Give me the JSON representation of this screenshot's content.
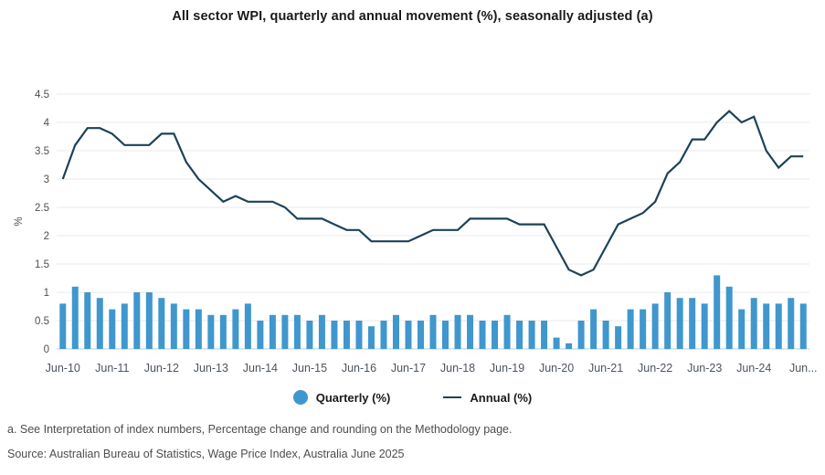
{
  "page": {
    "footnote": "a. See Interpretation of index numbers, Percentage change and rounding on the Methodology page.",
    "source": "Source: Australian Bureau of Statistics, Wage Price Index, Australia June 2025"
  },
  "legend": {
    "items": [
      {
        "label": "Quarterly (%)",
        "marker": "circle"
      },
      {
        "label": "Annual (%)",
        "marker": "line"
      }
    ]
  },
  "colors": {
    "bar": "#3f97cd",
    "line": "#1d4258",
    "grid": "#e9e9e9",
    "axis_baseline": "#c9dff0",
    "title_text": "#1a1a1a",
    "tick_text": "#4f4f4f",
    "xlabel_text": "#4b5560",
    "note_text": "#4d4d4d"
  },
  "chart_data": {
    "type": "combo-bar-line",
    "title": "All sector WPI, quarterly and annual movement (%), seasonally adjusted (a)",
    "xlabel": "",
    "ylabel": "%",
    "ylim": [
      0,
      4.5
    ],
    "ytick_step": 0.5,
    "grid": "horizontal",
    "legend_position": "bottom",
    "categories": [
      "Jun-10",
      "Sep-10",
      "Dec-10",
      "Mar-11",
      "Jun-11",
      "Sep-11",
      "Dec-11",
      "Mar-12",
      "Jun-12",
      "Sep-12",
      "Dec-12",
      "Mar-13",
      "Jun-13",
      "Sep-13",
      "Dec-13",
      "Mar-14",
      "Jun-14",
      "Sep-14",
      "Dec-14",
      "Mar-15",
      "Jun-15",
      "Sep-15",
      "Dec-15",
      "Mar-16",
      "Jun-16",
      "Sep-16",
      "Dec-16",
      "Mar-17",
      "Jun-17",
      "Sep-17",
      "Dec-17",
      "Mar-18",
      "Jun-18",
      "Sep-18",
      "Dec-18",
      "Mar-19",
      "Jun-19",
      "Sep-19",
      "Dec-19",
      "Mar-20",
      "Jun-20",
      "Sep-20",
      "Dec-20",
      "Mar-21",
      "Jun-21",
      "Sep-21",
      "Dec-21",
      "Mar-22",
      "Jun-22",
      "Sep-22",
      "Dec-22",
      "Mar-23",
      "Jun-23",
      "Sep-23",
      "Dec-23",
      "Mar-24",
      "Jun-24",
      "Sep-24",
      "Dec-24",
      "Mar-25",
      "Jun-25"
    ],
    "x_ticks": [
      {
        "index": 0,
        "label": "Jun-10"
      },
      {
        "index": 4,
        "label": "Jun-11"
      },
      {
        "index": 8,
        "label": "Jun-12"
      },
      {
        "index": 12,
        "label": "Jun-13"
      },
      {
        "index": 16,
        "label": "Jun-14"
      },
      {
        "index": 20,
        "label": "Jun-15"
      },
      {
        "index": 24,
        "label": "Jun-16"
      },
      {
        "index": 28,
        "label": "Jun-17"
      },
      {
        "index": 32,
        "label": "Jun-18"
      },
      {
        "index": 36,
        "label": "Jun-19"
      },
      {
        "index": 40,
        "label": "Jun-20"
      },
      {
        "index": 44,
        "label": "Jun-21"
      },
      {
        "index": 48,
        "label": "Jun-22"
      },
      {
        "index": 52,
        "label": "Jun-23"
      },
      {
        "index": 56,
        "label": "Jun-24"
      },
      {
        "index": 60,
        "label": "Jun..."
      }
    ],
    "series": [
      {
        "name": "Quarterly (%)",
        "kind": "bar",
        "values": [
          0.8,
          1.1,
          1.0,
          0.9,
          0.7,
          0.8,
          1.0,
          1.0,
          0.9,
          0.8,
          0.7,
          0.7,
          0.6,
          0.6,
          0.7,
          0.8,
          0.5,
          0.6,
          0.6,
          0.6,
          0.5,
          0.6,
          0.5,
          0.5,
          0.5,
          0.4,
          0.5,
          0.6,
          0.5,
          0.5,
          0.6,
          0.5,
          0.6,
          0.6,
          0.5,
          0.5,
          0.6,
          0.5,
          0.5,
          0.5,
          0.2,
          0.1,
          0.5,
          0.7,
          0.5,
          0.4,
          0.7,
          0.7,
          0.8,
          1.0,
          0.9,
          0.9,
          0.8,
          1.3,
          1.1,
          0.7,
          0.9,
          0.8,
          0.8,
          0.9,
          0.8
        ]
      },
      {
        "name": "Annual (%)",
        "kind": "line",
        "values": [
          3.0,
          3.6,
          3.9,
          3.9,
          3.8,
          3.6,
          3.6,
          3.6,
          3.8,
          3.8,
          3.3,
          3.0,
          2.8,
          2.6,
          2.7,
          2.6,
          2.6,
          2.6,
          2.5,
          2.3,
          2.3,
          2.3,
          2.2,
          2.1,
          2.1,
          1.9,
          1.9,
          1.9,
          1.9,
          2.0,
          2.1,
          2.1,
          2.1,
          2.3,
          2.3,
          2.3,
          2.3,
          2.2,
          2.2,
          2.2,
          1.8,
          1.4,
          1.3,
          1.4,
          1.8,
          2.2,
          2.3,
          2.4,
          2.6,
          3.1,
          3.3,
          3.7,
          3.7,
          4.0,
          4.2,
          4.0,
          4.1,
          3.5,
          3.2,
          3.4,
          3.4
        ]
      }
    ]
  }
}
